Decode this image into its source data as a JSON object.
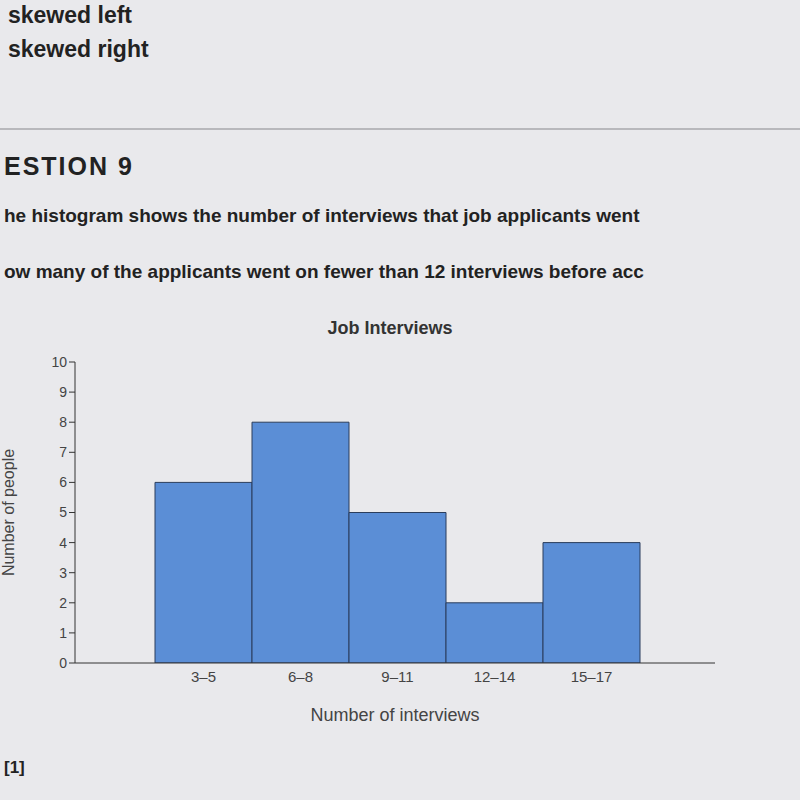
{
  "page": {
    "options": [
      "skewed left",
      "skewed right"
    ],
    "heading": "ESTION 9",
    "lines": [
      "he histogram shows the number of interviews that job applicants went",
      "ow many of the applicants went on fewer than 12 interviews before acc"
    ],
    "footer": "[1]"
  },
  "chart_data": {
    "type": "bar",
    "title": "Job Interviews",
    "x_label": "Number of interviews",
    "y_label": "Number of people",
    "categories": [
      "3–5",
      "6–8",
      "9–11",
      "12–14",
      "15–17"
    ],
    "values": [
      6,
      8,
      5,
      2,
      4
    ],
    "color": "#5b8ed6",
    "ylim": [
      0,
      10
    ],
    "yticks": [
      0,
      1,
      2,
      3,
      4,
      5,
      6,
      7,
      8,
      9,
      10
    ],
    "grid": false
  }
}
